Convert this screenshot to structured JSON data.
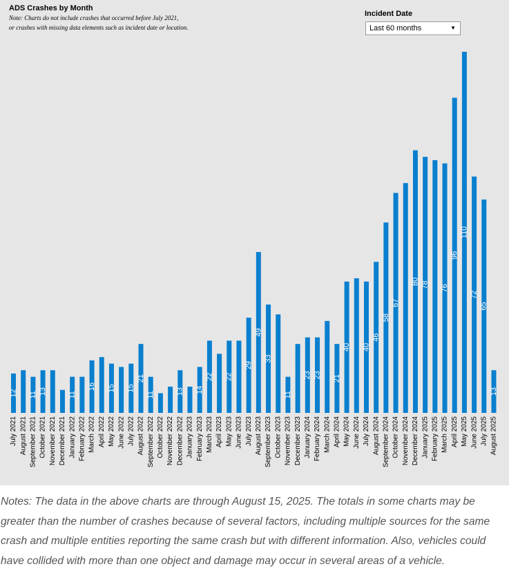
{
  "chart_data": {
    "type": "bar",
    "title": "ADS Crashes by Month",
    "subtitle": [
      "Note: Charts do not include crashes that occurred before July 2021,",
      "or crashes with missing data elements such as incident date or location."
    ],
    "categories": [
      "July 2021",
      "August 2021",
      "September 2021",
      "October 2021",
      "November 2021",
      "December 2021",
      "January 2022",
      "February 2022",
      "March 2022",
      "April 2022",
      "May 2022",
      "June 2022",
      "July 2022",
      "August 2022",
      "September 2022",
      "October 2022",
      "November 2022",
      "December 2022",
      "January 2023",
      "February 2023",
      "March 2023",
      "April 2023",
      "May 2023",
      "June 2023",
      "July 2023",
      "August 2023",
      "September 2023",
      "October 2023",
      "November 2023",
      "December 2023",
      "January 2024",
      "February 2024",
      "March 2024",
      "April 2024",
      "May 2024",
      "June 2024",
      "July 2024",
      "August 2024",
      "September 2024",
      "October 2024",
      "November 2024",
      "December 2024",
      "January 2025",
      "February 2025",
      "March 2025",
      "April 2025",
      "May 2025",
      "June 2025",
      "July 2025",
      "August 2025"
    ],
    "values": [
      12,
      13,
      11,
      13,
      13,
      7,
      11,
      11,
      16,
      17,
      15,
      14,
      15,
      21,
      11,
      6,
      8,
      13,
      8,
      14,
      22,
      18,
      22,
      22,
      29,
      49,
      33,
      30,
      11,
      21,
      23,
      23,
      28,
      21,
      40,
      41,
      40,
      46,
      58,
      67,
      70,
      80,
      78,
      77,
      76,
      96,
      110,
      72,
      65,
      13
    ],
    "value_labels": [
      "12",
      null,
      "11",
      "13",
      null,
      null,
      "11",
      null,
      "16",
      null,
      "15",
      null,
      "15",
      "21",
      "11",
      null,
      null,
      "13",
      null,
      "14",
      "22",
      null,
      "22",
      null,
      "29",
      "49",
      "33",
      null,
      "11",
      null,
      "23",
      "23",
      null,
      "21",
      "40",
      null,
      "40",
      "46",
      "58",
      "67",
      null,
      "80",
      "78",
      null,
      "76",
      "96",
      "110",
      "72",
      "65",
      "13"
    ],
    "color": "#0a7fcf",
    "ylim": [
      0,
      110
    ]
  },
  "filter": {
    "label": "Incident Date",
    "value": "Last 60 months"
  },
  "notes": "Notes: The data in the above charts are through August 15, 2025. The totals in some charts may be greater than the number of crashes because of several factors, including multiple sources for the same crash and multiple entities reporting the same crash but with different information. Also, vehicles could have collided with more than one object and damage may occur in several areas of a vehicle."
}
